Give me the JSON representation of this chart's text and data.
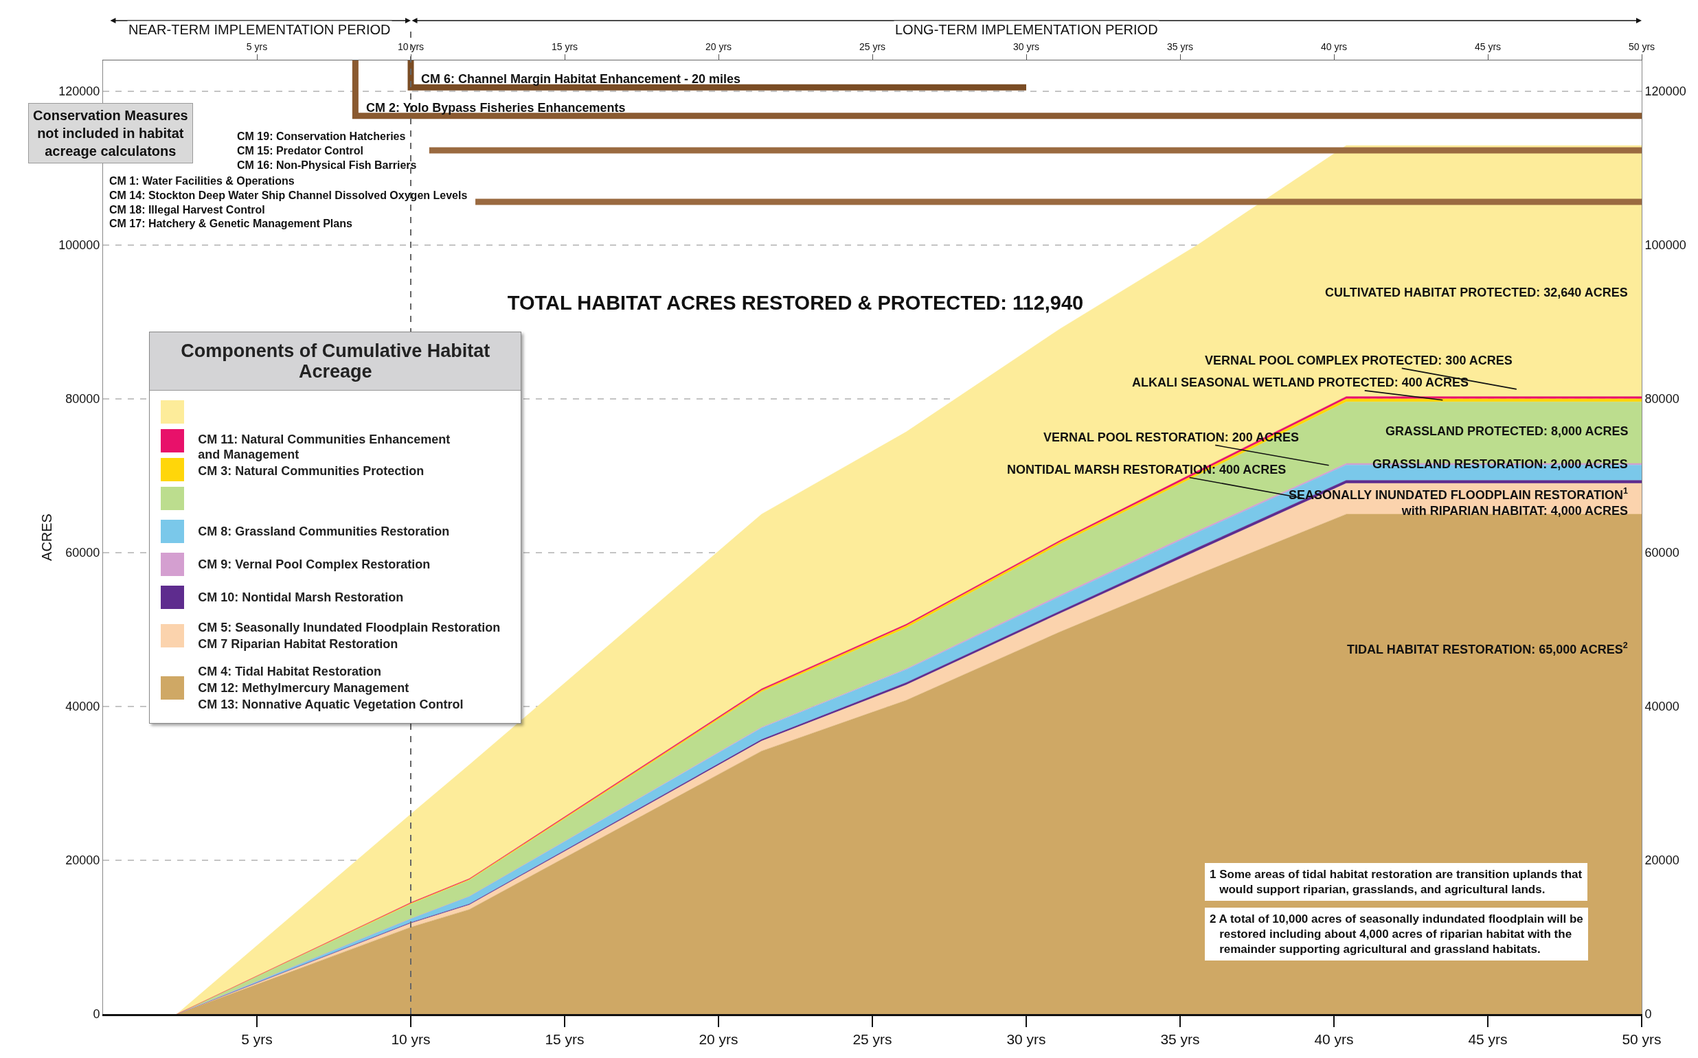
{
  "chart_data": {
    "type": "area",
    "stacked": true,
    "title": "TOTAL HABITAT ACRES RESTORED & PROTECTED: 112,940",
    "ylabel": "ACRES",
    "legend_title": "Components of Cumulative Habitat Acreage",
    "legend": "left",
    "grid": "y",
    "x": [
      2.4,
      10,
      11.9,
      21.4,
      26.1,
      31.1,
      35.6,
      40.4,
      50
    ],
    "xlim": [
      0,
      50
    ],
    "xticks": [
      {
        "value": 5,
        "label": "5 yrs"
      },
      {
        "value": 10,
        "label": "10 yrs"
      },
      {
        "value": 15,
        "label": "15 yrs"
      },
      {
        "value": 20,
        "label": "20 yrs"
      },
      {
        "value": 25,
        "label": "25 yrs"
      },
      {
        "value": 30,
        "label": "30 yrs"
      },
      {
        "value": 35,
        "label": "35 yrs"
      },
      {
        "value": 40,
        "label": "40 yrs"
      },
      {
        "value": 45,
        "label": "45 yrs"
      },
      {
        "value": 50,
        "label": "50 yrs"
      }
    ],
    "x2lim": [
      0,
      50
    ],
    "x2ticks": [
      {
        "value": 5,
        "label": "5 yrs"
      },
      {
        "value": 10,
        "label": "10 yrs"
      },
      {
        "value": 15,
        "label": "15 yrs"
      },
      {
        "value": 20,
        "label": "20 yrs"
      },
      {
        "value": 25,
        "label": "25 yrs"
      },
      {
        "value": 30,
        "label": "30 yrs"
      },
      {
        "value": 35,
        "label": "35 yrs"
      },
      {
        "value": 40,
        "label": "40 yrs"
      },
      {
        "value": 45,
        "label": "45 yrs"
      },
      {
        "value": 50,
        "label": "50 yrs"
      }
    ],
    "ylim": [
      0,
      124000
    ],
    "yticks": [
      0,
      20000,
      40000,
      60000,
      80000,
      100000,
      120000
    ],
    "y2lim": [
      0,
      124000
    ],
    "y2ticks": [
      0,
      20000,
      40000,
      60000,
      80000,
      100000,
      120000
    ],
    "series": [
      {
        "name": "TIDAL HABITAT RESTORATION: 65,000 ACRES$^{2}$",
        "color": "#cfa865",
        "values": [
          0,
          11300,
          13600,
          34200,
          40800,
          49700,
          57200,
          65000,
          65000
        ]
      },
      {
        "name": "SEASONALLY INUNDATED FLOODPLAIN RESTORATION$^{1}$\nwith RIPARIAN HABITAT: 4,000 ACRES",
        "color": "#fbd3ad",
        "values": [
          0,
          500,
          600,
          1300,
          2000,
          2400,
          3100,
          4000,
          4000
        ]
      },
      {
        "name": "NONTIDAL MARSH RESTORATION: 400 ACRES",
        "color": "#5e2c8e",
        "values": [
          0,
          100,
          100,
          200,
          300,
          300,
          400,
          400,
          400
        ]
      },
      {
        "name": "GRASSLAND RESTORATION: 2,000 ACRES",
        "color": "#7ac8ea",
        "values": [
          0,
          500,
          1000,
          1500,
          1700,
          1900,
          2000,
          2000,
          2000
        ]
      },
      {
        "name": "VERNAL POOL RESTORATION: 200 ACRES",
        "color": "#d49fd0",
        "values": [
          0,
          0,
          0,
          100,
          100,
          200,
          200,
          200,
          200
        ]
      },
      {
        "name": "GRASSLAND PROTECTED: 8,000 ACRES",
        "color": "#bcdd8e",
        "values": [
          0,
          1900,
          2100,
          4600,
          5300,
          6600,
          7200,
          8000,
          8000
        ]
      },
      {
        "name": "ALKALI SEASONAL WETLAND PROTECTED: 400 ACRES",
        "color": "#ffd60a",
        "values": [
          0,
          100,
          100,
          200,
          300,
          300,
          300,
          400,
          400
        ]
      },
      {
        "name": "VERNAL POOL COMPLEX PROTECTED: 300 ACRES",
        "color": "#e8116a",
        "values": [
          0,
          100,
          100,
          200,
          200,
          200,
          300,
          300,
          300
        ]
      },
      {
        "name": "CULTIVATED HABITAT PROTECTED: 32,640 ACRES",
        "color": "#fdec9a",
        "values": [
          0,
          11500,
          14800,
          22700,
          25000,
          27500,
          29400,
          32640,
          32640
        ]
      },
      {
        "type": "line",
        "name": "CM 6: Channel Margin Habitat Enhancement - 20 miles",
        "color": "#7a4c24",
        "x": [
          10,
          10,
          30
        ],
        "values": [
          124000,
          120500,
          120500
        ]
      },
      {
        "type": "line",
        "name": "CM 2: Yolo Bypass Fisheries Enhancements",
        "color": "#8a5a30",
        "x": [
          8.2,
          8.2,
          50
        ],
        "values": [
          124000,
          116800,
          116800
        ]
      },
      {
        "type": "line",
        "name": "CM 19: Conservation Hatcheries\nCM 15: Predator Control\nCM 16: Non-Physical Fish Barriers",
        "color": "#9a6a40",
        "x": [
          10.6,
          50
        ],
        "values": [
          112300,
          112300
        ]
      },
      {
        "type": "line",
        "name": "CM 1: Water Facilities & Operations\nCM 14: Stockton Deep Water Ship Channel Dissolved Oxygen Levels\nCM 18: Illegal Harvest Control\nCM 17: Hatchery & Genetic Management Plans",
        "color": "#9a6a40",
        "x": [
          12.1,
          50
        ],
        "values": [
          105600,
          105600
        ]
      }
    ],
    "ref_lines": [
      {
        "axis": "x",
        "value": 10,
        "line_style": "dashed",
        "color": "#666666"
      }
    ],
    "annotations": [
      "Conservation Measures\nnot included in habitat\nacreage calculatons",
      "1 Some areas of tidal habitat restoration are transition uplands that\n   would support riparian, grasslands, and agricultural lands.",
      "2 A total of 10,000 acres of seasonally indundated floodplain will be\n   restored including about 4,000 acres of riparian habitat with the\n   remainder supporting agricultural and grassland habitats.",
      "CM 11: Natural Communities Enhancement\nand Management",
      "CM 3: Natural Communities Protection",
      "CM 8: Grassland Communities Restoration",
      "CM 9: Vernal Pool Complex Restoration",
      "CM 10: Nontidal Marsh Restoration",
      "CM 5: Seasonally Inundated Floodplain Restoration",
      "CM 7 Riparian Habitat Restoration",
      "CM 4: Tidal Habitat Restoration",
      "CM 12: Methylmercury Management",
      "CM 13: Nonnative Aquatic Vegetation Control",
      "NEAR-TERM IMPLEMENTATION PERIOD",
      "LONG-TERM IMPLEMENTATION PERIOD"
    ]
  }
}
